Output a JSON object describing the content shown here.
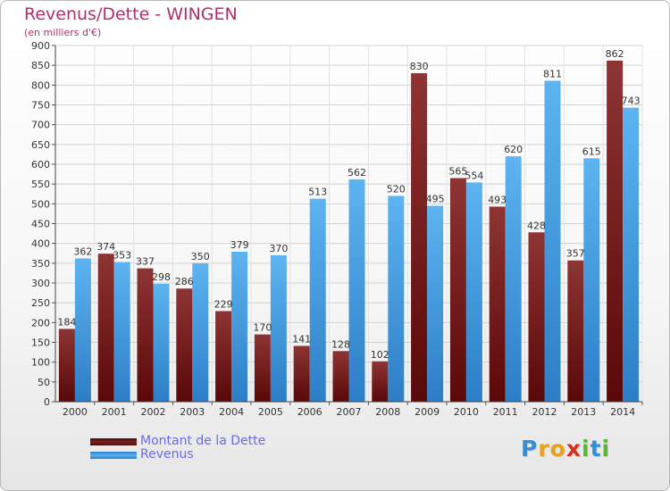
{
  "header": {
    "title": "Revenus/Dette - WINGEN",
    "subtitle": "(en milliers d'€)"
  },
  "chart_data": {
    "type": "bar",
    "title": "Revenus/Dette - WINGEN",
    "subtitle": "(en milliers d'€)",
    "xlabel": "",
    "ylabel": "",
    "ylim": [
      0,
      900
    ],
    "ytick_step": 50,
    "grid": true,
    "legend_position": "bottom-left",
    "categories": [
      "2000",
      "2001",
      "2002",
      "2003",
      "2004",
      "2005",
      "2006",
      "2007",
      "2008",
      "2009",
      "2010",
      "2011",
      "2012",
      "2013",
      "2014"
    ],
    "series": [
      {
        "name": "Montant de la Dette",
        "color": "#7a1e1e",
        "values": [
          184,
          374,
          337,
          286,
          229,
          170,
          141,
          128,
          102,
          830,
          565,
          493,
          428,
          357,
          862
        ]
      },
      {
        "name": "Revenus",
        "color": "#4aa3e6",
        "values": [
          362,
          353,
          298,
          350,
          379,
          370,
          513,
          562,
          520,
          495,
          554,
          620,
          811,
          615,
          743
        ]
      }
    ]
  },
  "legend": {
    "items": [
      {
        "label": "Montant de la Dette",
        "color": "#6e1818"
      },
      {
        "label": "Revenus",
        "color": "#4aa3e6"
      }
    ]
  },
  "logo": {
    "letters": [
      {
        "ch": "P",
        "color": "#2f8fd8"
      },
      {
        "ch": "r",
        "color": "#e8a21b"
      },
      {
        "ch": "o",
        "color": "#e8a21b"
      },
      {
        "ch": "x",
        "color": "#d83020"
      },
      {
        "ch": "i",
        "color": "#5cb82e"
      },
      {
        "ch": "t",
        "color": "#2f8fd8"
      },
      {
        "ch": "i",
        "color": "#5cb82e"
      }
    ]
  }
}
